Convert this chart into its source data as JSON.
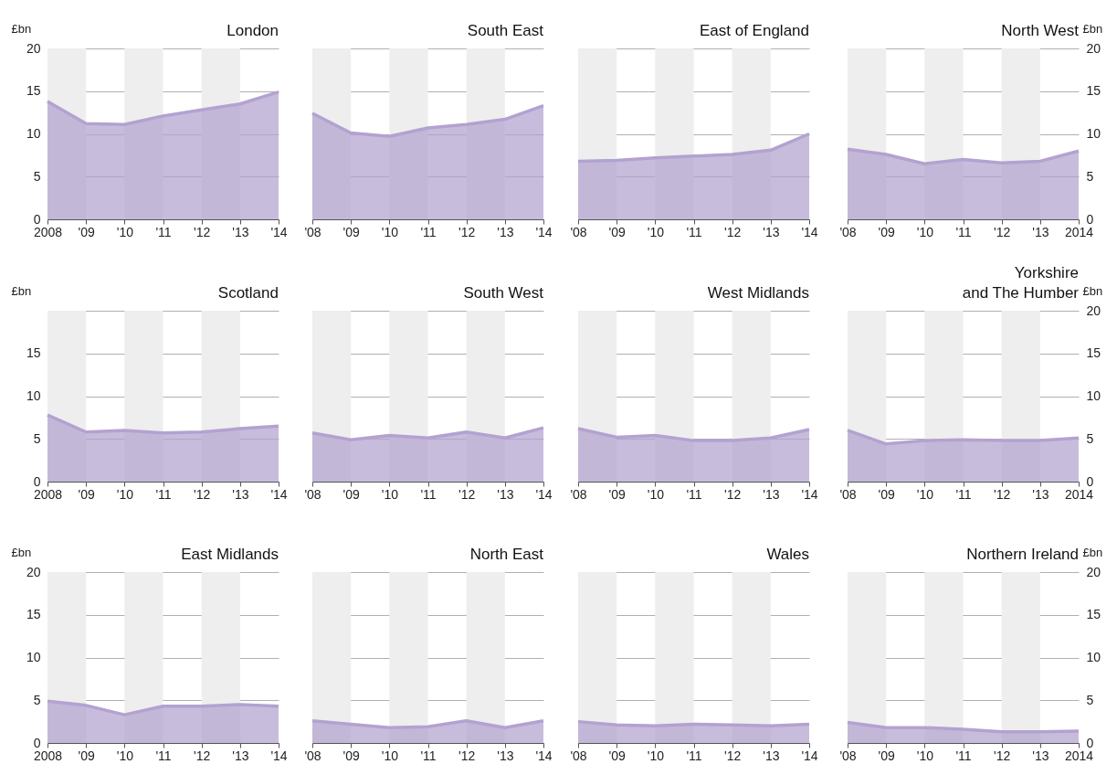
{
  "chart_data": [
    {
      "type": "area",
      "title": "London",
      "ylabel": "£bn",
      "x": [
        2008,
        2009,
        2010,
        2011,
        2012,
        2013,
        2014
      ],
      "xlim": [
        2008,
        2014
      ],
      "xticks": [
        {
          "value": 2008,
          "label": "2008"
        },
        {
          "value": 2009,
          "label": "'09"
        },
        {
          "value": 2010,
          "label": "'10"
        },
        {
          "value": 2011,
          "label": "'11"
        },
        {
          "value": 2012,
          "label": "'12"
        },
        {
          "value": 2013,
          "label": "'13"
        },
        {
          "value": 2014,
          "label": "'14"
        }
      ],
      "ylim": [
        0,
        20
      ],
      "yticks": [
        0,
        5,
        10,
        15,
        20
      ],
      "grid": "y",
      "bands": [
        {
          "axis": "x",
          "from": 2008,
          "to": 2009,
          "color": "#eeeeee"
        },
        {
          "axis": "x",
          "from": 2010,
          "to": 2011,
          "color": "#eeeeee"
        },
        {
          "axis": "x",
          "from": 2012,
          "to": 2013,
          "color": "#eeeeee"
        }
      ],
      "series": [
        {
          "color": "#b3a2d0",
          "values": [
            13.8,
            11.2,
            11.1,
            12.1,
            12.8,
            13.5,
            14.9
          ]
        }
      ]
    },
    {
      "type": "area",
      "title": "South East",
      "x": [
        2008,
        2009,
        2010,
        2011,
        2012,
        2013,
        2014
      ],
      "xlim": [
        2008,
        2014
      ],
      "xticks": [
        {
          "value": 2008,
          "label": "'08"
        },
        {
          "value": 2009,
          "label": "'09"
        },
        {
          "value": 2010,
          "label": "'10"
        },
        {
          "value": 2011,
          "label": "'11"
        },
        {
          "value": 2012,
          "label": "'12"
        },
        {
          "value": 2013,
          "label": "'13"
        },
        {
          "value": 2014,
          "label": "'14"
        }
      ],
      "ylim": [
        0,
        20
      ],
      "yticks": [
        0,
        5,
        10,
        15,
        20
      ],
      "tick_labels": "x",
      "grid": "y",
      "bands": [
        {
          "axis": "x",
          "from": 2008,
          "to": 2009,
          "color": "#eeeeee"
        },
        {
          "axis": "x",
          "from": 2010,
          "to": 2011,
          "color": "#eeeeee"
        },
        {
          "axis": "x",
          "from": 2012,
          "to": 2013,
          "color": "#eeeeee"
        }
      ],
      "series": [
        {
          "color": "#b3a2d0",
          "values": [
            12.4,
            10.1,
            9.7,
            10.7,
            11.1,
            11.7,
            13.3
          ]
        }
      ]
    },
    {
      "type": "area",
      "title": "East of England",
      "x": [
        2008,
        2009,
        2010,
        2011,
        2012,
        2013,
        2014
      ],
      "xlim": [
        2008,
        2014
      ],
      "xticks": [
        {
          "value": 2008,
          "label": "'08"
        },
        {
          "value": 2009,
          "label": "'09"
        },
        {
          "value": 2010,
          "label": "'10"
        },
        {
          "value": 2011,
          "label": "'11"
        },
        {
          "value": 2012,
          "label": "'12"
        },
        {
          "value": 2013,
          "label": "'13"
        },
        {
          "value": 2014,
          "label": "'14"
        }
      ],
      "ylim": [
        0,
        20
      ],
      "yticks": [
        0,
        5,
        10,
        15,
        20
      ],
      "tick_labels": "x",
      "grid": "y",
      "bands": [
        {
          "axis": "x",
          "from": 2008,
          "to": 2009,
          "color": "#eeeeee"
        },
        {
          "axis": "x",
          "from": 2010,
          "to": 2011,
          "color": "#eeeeee"
        },
        {
          "axis": "x",
          "from": 2012,
          "to": 2013,
          "color": "#eeeeee"
        }
      ],
      "series": [
        {
          "color": "#b3a2d0",
          "values": [
            6.8,
            6.9,
            7.2,
            7.4,
            7.6,
            8.1,
            10.0
          ]
        }
      ]
    },
    {
      "type": "area",
      "title": "North West",
      "y2label": "£bn",
      "x": [
        2008,
        2009,
        2010,
        2011,
        2012,
        2013,
        2014
      ],
      "xlim": [
        2008,
        2014
      ],
      "xticks": [
        {
          "value": 2008,
          "label": "'08"
        },
        {
          "value": 2009,
          "label": "'09"
        },
        {
          "value": 2010,
          "label": "'10"
        },
        {
          "value": 2011,
          "label": "'11"
        },
        {
          "value": 2012,
          "label": "'12"
        },
        {
          "value": 2013,
          "label": "'13"
        },
        {
          "value": 2014,
          "label": "2014"
        }
      ],
      "y2lim": [
        0,
        20
      ],
      "y2ticks": [
        0,
        5,
        10,
        15,
        20
      ],
      "grid": "y",
      "bands": [
        {
          "axis": "x",
          "from": 2008,
          "to": 2009,
          "color": "#eeeeee"
        },
        {
          "axis": "x",
          "from": 2010,
          "to": 2011,
          "color": "#eeeeee"
        },
        {
          "axis": "x",
          "from": 2012,
          "to": 2013,
          "color": "#eeeeee"
        }
      ],
      "series": [
        {
          "color": "#b3a2d0",
          "axis": "y2",
          "values": [
            8.2,
            7.6,
            6.5,
            7.0,
            6.6,
            6.8,
            8.0
          ]
        }
      ]
    },
    {
      "type": "area",
      "title": "Scotland",
      "ylabel": "£bn",
      "x": [
        2008,
        2009,
        2010,
        2011,
        2012,
        2013,
        2014
      ],
      "xlim": [
        2008,
        2014
      ],
      "xticks": [
        {
          "value": 2008,
          "label": "2008"
        },
        {
          "value": 2009,
          "label": "'09"
        },
        {
          "value": 2010,
          "label": "'10"
        },
        {
          "value": 2011,
          "label": "'11"
        },
        {
          "value": 2012,
          "label": "'12"
        },
        {
          "value": 2013,
          "label": "'13"
        },
        {
          "value": 2014,
          "label": "'14"
        }
      ],
      "ylim": [
        0,
        20
      ],
      "yticks": [
        0,
        5,
        10,
        15,
        {
          "value": 20,
          "label": null
        }
      ],
      "grid": "y",
      "bands": [
        {
          "axis": "x",
          "from": 2008,
          "to": 2009,
          "color": "#eeeeee"
        },
        {
          "axis": "x",
          "from": 2010,
          "to": 2011,
          "color": "#eeeeee"
        },
        {
          "axis": "x",
          "from": 2012,
          "to": 2013,
          "color": "#eeeeee"
        }
      ],
      "series": [
        {
          "color": "#b3a2d0",
          "values": [
            7.8,
            5.8,
            6.0,
            5.7,
            5.8,
            6.2,
            6.5
          ]
        }
      ]
    },
    {
      "type": "area",
      "title": "South West",
      "x": [
        2008,
        2009,
        2010,
        2011,
        2012,
        2013,
        2014
      ],
      "xlim": [
        2008,
        2014
      ],
      "xticks": [
        {
          "value": 2008,
          "label": "'08"
        },
        {
          "value": 2009,
          "label": "'09"
        },
        {
          "value": 2010,
          "label": "'10"
        },
        {
          "value": 2011,
          "label": "'11"
        },
        {
          "value": 2012,
          "label": "'12"
        },
        {
          "value": 2013,
          "label": "'13"
        },
        {
          "value": 2014,
          "label": "'14"
        }
      ],
      "ylim": [
        0,
        20
      ],
      "yticks": [
        0,
        5,
        10,
        15,
        20
      ],
      "tick_labels": "x",
      "grid": "y",
      "bands": [
        {
          "axis": "x",
          "from": 2008,
          "to": 2009,
          "color": "#eeeeee"
        },
        {
          "axis": "x",
          "from": 2010,
          "to": 2011,
          "color": "#eeeeee"
        },
        {
          "axis": "x",
          "from": 2012,
          "to": 2013,
          "color": "#eeeeee"
        }
      ],
      "series": [
        {
          "color": "#b3a2d0",
          "values": [
            5.7,
            4.9,
            5.4,
            5.1,
            5.8,
            5.1,
            6.3
          ]
        }
      ]
    },
    {
      "type": "area",
      "title": "West Midlands",
      "x": [
        2008,
        2009,
        2010,
        2011,
        2012,
        2013,
        2014
      ],
      "xlim": [
        2008,
        2014
      ],
      "xticks": [
        {
          "value": 2008,
          "label": "'08"
        },
        {
          "value": 2009,
          "label": "'09"
        },
        {
          "value": 2010,
          "label": "'10"
        },
        {
          "value": 2011,
          "label": "'11"
        },
        {
          "value": 2012,
          "label": "'12"
        },
        {
          "value": 2013,
          "label": "'13"
        },
        {
          "value": 2014,
          "label": "'14"
        }
      ],
      "ylim": [
        0,
        20
      ],
      "yticks": [
        0,
        5,
        10,
        15,
        20
      ],
      "tick_labels": "x",
      "grid": "y",
      "bands": [
        {
          "axis": "x",
          "from": 2008,
          "to": 2009,
          "color": "#eeeeee"
        },
        {
          "axis": "x",
          "from": 2010,
          "to": 2011,
          "color": "#eeeeee"
        },
        {
          "axis": "x",
          "from": 2012,
          "to": 2013,
          "color": "#eeeeee"
        }
      ],
      "series": [
        {
          "color": "#b3a2d0",
          "values": [
            6.2,
            5.2,
            5.4,
            4.8,
            4.8,
            5.1,
            6.1
          ]
        }
      ]
    },
    {
      "type": "area",
      "title": "Yorkshire\nand The Humber",
      "y2label": "£bn",
      "x": [
        2008,
        2009,
        2010,
        2011,
        2012,
        2013,
        2014
      ],
      "xlim": [
        2008,
        2014
      ],
      "xticks": [
        {
          "value": 2008,
          "label": "'08"
        },
        {
          "value": 2009,
          "label": "'09"
        },
        {
          "value": 2010,
          "label": "'10"
        },
        {
          "value": 2011,
          "label": "'11"
        },
        {
          "value": 2012,
          "label": "'12"
        },
        {
          "value": 2013,
          "label": "'13"
        },
        {
          "value": 2014,
          "label": "2014"
        }
      ],
      "y2lim": [
        0,
        20
      ],
      "y2ticks": [
        0,
        5,
        10,
        15,
        20
      ],
      "grid": "y",
      "bands": [
        {
          "axis": "x",
          "from": 2008,
          "to": 2009,
          "color": "#eeeeee"
        },
        {
          "axis": "x",
          "from": 2010,
          "to": 2011,
          "color": "#eeeeee"
        },
        {
          "axis": "x",
          "from": 2012,
          "to": 2013,
          "color": "#eeeeee"
        }
      ],
      "series": [
        {
          "color": "#b3a2d0",
          "axis": "y2",
          "values": [
            6.0,
            4.4,
            4.8,
            4.9,
            4.8,
            4.8,
            5.1
          ]
        }
      ]
    },
    {
      "type": "area",
      "title": "East Midlands",
      "ylabel": "£bn",
      "x": [
        2008,
        2009,
        2010,
        2011,
        2012,
        2013,
        2014
      ],
      "xlim": [
        2008,
        2014
      ],
      "xticks": [
        {
          "value": 2008,
          "label": "2008"
        },
        {
          "value": 2009,
          "label": "'09"
        },
        {
          "value": 2010,
          "label": "'10"
        },
        {
          "value": 2011,
          "label": "'11"
        },
        {
          "value": 2012,
          "label": "'12"
        },
        {
          "value": 2013,
          "label": "'13"
        },
        {
          "value": 2014,
          "label": "'14"
        }
      ],
      "ylim": [
        0,
        20
      ],
      "yticks": [
        0,
        5,
        10,
        15,
        20
      ],
      "grid": "y",
      "bands": [
        {
          "axis": "x",
          "from": 2008,
          "to": 2009,
          "color": "#eeeeee"
        },
        {
          "axis": "x",
          "from": 2010,
          "to": 2011,
          "color": "#eeeeee"
        },
        {
          "axis": "x",
          "from": 2012,
          "to": 2013,
          "color": "#eeeeee"
        }
      ],
      "series": [
        {
          "color": "#b3a2d0",
          "values": [
            4.9,
            4.4,
            3.3,
            4.3,
            4.3,
            4.5,
            4.3
          ]
        }
      ]
    },
    {
      "type": "area",
      "title": "North East",
      "x": [
        2008,
        2009,
        2010,
        2011,
        2012,
        2013,
        2014
      ],
      "xlim": [
        2008,
        2014
      ],
      "xticks": [
        {
          "value": 2008,
          "label": "'08"
        },
        {
          "value": 2009,
          "label": "'09"
        },
        {
          "value": 2010,
          "label": "'10"
        },
        {
          "value": 2011,
          "label": "'11"
        },
        {
          "value": 2012,
          "label": "'12"
        },
        {
          "value": 2013,
          "label": "'13"
        },
        {
          "value": 2014,
          "label": "'14"
        }
      ],
      "ylim": [
        0,
        20
      ],
      "yticks": [
        0,
        5,
        10,
        15,
        20
      ],
      "tick_labels": "x",
      "grid": "y",
      "bands": [
        {
          "axis": "x",
          "from": 2008,
          "to": 2009,
          "color": "#eeeeee"
        },
        {
          "axis": "x",
          "from": 2010,
          "to": 2011,
          "color": "#eeeeee"
        },
        {
          "axis": "x",
          "from": 2012,
          "to": 2013,
          "color": "#eeeeee"
        }
      ],
      "series": [
        {
          "color": "#b3a2d0",
          "values": [
            2.6,
            2.2,
            1.8,
            1.9,
            2.6,
            1.8,
            2.6
          ]
        }
      ]
    },
    {
      "type": "area",
      "title": "Wales",
      "x": [
        2008,
        2009,
        2010,
        2011,
        2012,
        2013,
        2014
      ],
      "xlim": [
        2008,
        2014
      ],
      "xticks": [
        {
          "value": 2008,
          "label": "'08"
        },
        {
          "value": 2009,
          "label": "'09"
        },
        {
          "value": 2010,
          "label": "'10"
        },
        {
          "value": 2011,
          "label": "'11"
        },
        {
          "value": 2012,
          "label": "'12"
        },
        {
          "value": 2013,
          "label": "'13"
        },
        {
          "value": 2014,
          "label": "'14"
        }
      ],
      "ylim": [
        0,
        20
      ],
      "yticks": [
        0,
        5,
        10,
        15,
        20
      ],
      "tick_labels": "x",
      "grid": "y",
      "bands": [
        {
          "axis": "x",
          "from": 2008,
          "to": 2009,
          "color": "#eeeeee"
        },
        {
          "axis": "x",
          "from": 2010,
          "to": 2011,
          "color": "#eeeeee"
        },
        {
          "axis": "x",
          "from": 2012,
          "to": 2013,
          "color": "#eeeeee"
        }
      ],
      "series": [
        {
          "color": "#b3a2d0",
          "values": [
            2.5,
            2.1,
            2.0,
            2.2,
            2.1,
            2.0,
            2.2
          ]
        }
      ]
    },
    {
      "type": "area",
      "title": "Northern Ireland",
      "y2label": "£bn",
      "x": [
        2008,
        2009,
        2010,
        2011,
        2012,
        2013,
        2014
      ],
      "xlim": [
        2008,
        2014
      ],
      "xticks": [
        {
          "value": 2008,
          "label": "'08"
        },
        {
          "value": 2009,
          "label": "'09"
        },
        {
          "value": 2010,
          "label": "'10"
        },
        {
          "value": 2011,
          "label": "'11"
        },
        {
          "value": 2012,
          "label": "'12"
        },
        {
          "value": 2013,
          "label": "'13"
        },
        {
          "value": 2014,
          "label": "2014"
        }
      ],
      "y2lim": [
        0,
        20
      ],
      "y2ticks": [
        0,
        5,
        10,
        15,
        20
      ],
      "grid": "y",
      "bands": [
        {
          "axis": "x",
          "from": 2008,
          "to": 2009,
          "color": "#eeeeee"
        },
        {
          "axis": "x",
          "from": 2010,
          "to": 2011,
          "color": "#eeeeee"
        },
        {
          "axis": "x",
          "from": 2012,
          "to": 2013,
          "color": "#eeeeee"
        }
      ],
      "series": [
        {
          "color": "#b3a2d0",
          "axis": "y2",
          "values": [
            2.4,
            1.8,
            1.8,
            1.6,
            1.3,
            1.3,
            1.4
          ]
        }
      ]
    }
  ]
}
